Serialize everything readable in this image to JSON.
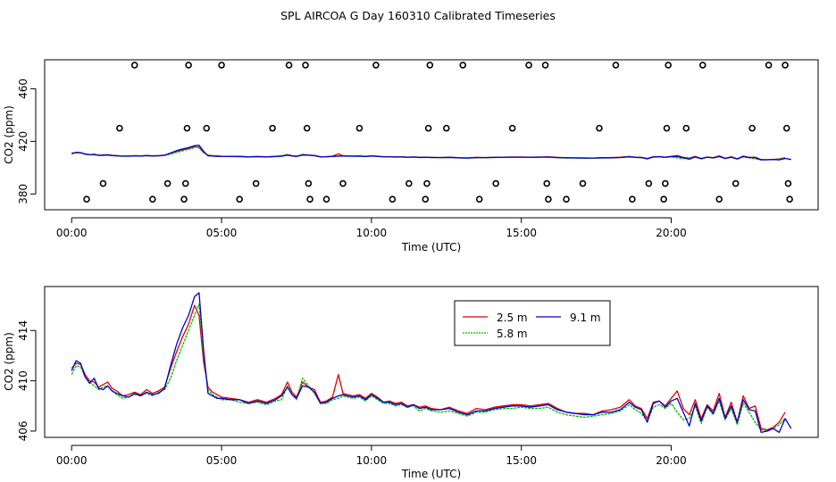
{
  "title": "SPL AIRCOA G  Day 160310  Calibrated Timeseries",
  "colors": {
    "s25": "#e00000",
    "s58": "#00c000",
    "s91": "#0000cc",
    "frame": "#000000"
  },
  "chart_data": [
    {
      "type": "scatter+line",
      "xlabel": "Time (UTC)",
      "ylabel": "CO2 (ppm)",
      "xlim": [
        -0.9,
        24.9
      ],
      "ylim": [
        368,
        482
      ],
      "xticks": [
        0,
        5,
        10,
        15,
        20
      ],
      "xtick_labels": [
        "00:00",
        "05:00",
        "10:00",
        "15:00",
        "20:00"
      ],
      "yticks": [
        380,
        420,
        460
      ],
      "ytick_labels": [
        "380",
        "420",
        "460"
      ],
      "cal_points": [
        {
          "x": 0.5,
          "y": 376
        },
        {
          "x": 1.05,
          "y": 388
        },
        {
          "x": 1.6,
          "y": 430
        },
        {
          "x": 2.1,
          "y": 478
        },
        {
          "x": 2.7,
          "y": 376
        },
        {
          "x": 3.2,
          "y": 388
        },
        {
          "x": 3.75,
          "y": 376
        },
        {
          "x": 3.8,
          "y": 388
        },
        {
          "x": 3.85,
          "y": 430
        },
        {
          "x": 3.9,
          "y": 478
        },
        {
          "x": 4.5,
          "y": 430
        },
        {
          "x": 5.0,
          "y": 478
        },
        {
          "x": 5.6,
          "y": 376
        },
        {
          "x": 6.15,
          "y": 388
        },
        {
          "x": 6.7,
          "y": 430
        },
        {
          "x": 7.25,
          "y": 478
        },
        {
          "x": 7.8,
          "y": 478
        },
        {
          "x": 7.85,
          "y": 430
        },
        {
          "x": 7.9,
          "y": 388
        },
        {
          "x": 7.95,
          "y": 376
        },
        {
          "x": 8.5,
          "y": 376
        },
        {
          "x": 9.05,
          "y": 388
        },
        {
          "x": 9.6,
          "y": 430
        },
        {
          "x": 10.15,
          "y": 478
        },
        {
          "x": 10.7,
          "y": 376
        },
        {
          "x": 11.25,
          "y": 388
        },
        {
          "x": 11.8,
          "y": 376
        },
        {
          "x": 11.85,
          "y": 388
        },
        {
          "x": 11.9,
          "y": 430
        },
        {
          "x": 11.95,
          "y": 478
        },
        {
          "x": 12.5,
          "y": 430
        },
        {
          "x": 13.05,
          "y": 478
        },
        {
          "x": 13.6,
          "y": 376
        },
        {
          "x": 14.15,
          "y": 388
        },
        {
          "x": 14.7,
          "y": 430
        },
        {
          "x": 15.25,
          "y": 478
        },
        {
          "x": 15.8,
          "y": 478
        },
        {
          "x": 15.85,
          "y": 388
        },
        {
          "x": 15.9,
          "y": 376
        },
        {
          "x": 16.5,
          "y": 376
        },
        {
          "x": 17.05,
          "y": 388
        },
        {
          "x": 17.6,
          "y": 430
        },
        {
          "x": 18.15,
          "y": 478
        },
        {
          "x": 18.7,
          "y": 376
        },
        {
          "x": 19.25,
          "y": 388
        },
        {
          "x": 19.75,
          "y": 376
        },
        {
          "x": 19.8,
          "y": 388
        },
        {
          "x": 19.85,
          "y": 430
        },
        {
          "x": 19.9,
          "y": 478
        },
        {
          "x": 20.5,
          "y": 430
        },
        {
          "x": 21.05,
          "y": 478
        },
        {
          "x": 21.6,
          "y": 376
        },
        {
          "x": 22.15,
          "y": 388
        },
        {
          "x": 22.7,
          "y": 430
        },
        {
          "x": 23.25,
          "y": 478
        },
        {
          "x": 23.8,
          "y": 478
        },
        {
          "x": 23.85,
          "y": 430
        },
        {
          "x": 23.9,
          "y": 388
        },
        {
          "x": 23.95,
          "y": 376
        }
      ]
    },
    {
      "type": "line",
      "xlabel": "Time (UTC)",
      "ylabel": "CO2 (ppm)",
      "xlim": [
        -0.9,
        24.9
      ],
      "ylim": [
        405.5,
        417.5
      ],
      "xticks": [
        0,
        5,
        10,
        15,
        20
      ],
      "xtick_labels": [
        "00:00",
        "05:00",
        "10:00",
        "15:00",
        "20:00"
      ],
      "yticks": [
        406,
        410,
        414
      ],
      "ytick_labels": [
        "406",
        "410",
        "414"
      ],
      "legend": {
        "position": "top-center",
        "entries": [
          "2.5 m",
          "5.8 m",
          "9.1 m"
        ]
      },
      "x": [
        0.0,
        0.15,
        0.3,
        0.45,
        0.6,
        0.75,
        0.9,
        1.05,
        1.2,
        1.35,
        1.5,
        1.7,
        1.9,
        2.1,
        2.3,
        2.5,
        2.7,
        2.9,
        3.1,
        3.3,
        3.5,
        3.7,
        3.9,
        4.1,
        4.25,
        4.4,
        4.55,
        4.7,
        4.85,
        5.0,
        5.3,
        5.6,
        5.9,
        6.2,
        6.5,
        6.8,
        7.0,
        7.2,
        7.35,
        7.5,
        7.7,
        7.9,
        8.1,
        8.3,
        8.5,
        8.7,
        8.9,
        9.05,
        9.2,
        9.4,
        9.6,
        9.8,
        10.0,
        10.2,
        10.4,
        10.6,
        10.8,
        11.0,
        11.2,
        11.4,
        11.6,
        11.8,
        12.0,
        12.3,
        12.6,
        12.9,
        13.2,
        13.5,
        13.8,
        14.1,
        14.4,
        14.7,
        15.0,
        15.3,
        15.6,
        15.9,
        16.2,
        16.5,
        16.8,
        17.1,
        17.4,
        17.7,
        18.0,
        18.3,
        18.6,
        18.8,
        19.0,
        19.2,
        19.4,
        19.6,
        19.8,
        20.0,
        20.2,
        20.4,
        20.6,
        20.8,
        21.0,
        21.2,
        21.4,
        21.6,
        21.8,
        22.0,
        22.2,
        22.4,
        22.6,
        22.8,
        23.0,
        23.2,
        23.4,
        23.6,
        23.8,
        24.0
      ],
      "series": [
        {
          "name": "2.5 m",
          "color_key": "s25",
          "values": [
            411.0,
            411.4,
            411.3,
            410.5,
            410.0,
            409.9,
            409.5,
            409.7,
            409.9,
            409.4,
            409.2,
            408.8,
            408.9,
            409.1,
            408.9,
            409.3,
            409.0,
            409.2,
            409.5,
            411.0,
            412.3,
            413.5,
            414.5,
            416.0,
            415.2,
            411.5,
            409.5,
            409.1,
            408.9,
            408.7,
            408.6,
            408.5,
            408.3,
            408.5,
            408.3,
            408.6,
            408.9,
            409.9,
            409.1,
            408.7,
            409.9,
            409.5,
            409.3,
            408.3,
            408.4,
            408.7,
            410.5,
            409.0,
            408.9,
            408.8,
            408.9,
            408.6,
            409.0,
            408.7,
            408.3,
            408.4,
            408.2,
            408.3,
            408.0,
            408.1,
            407.9,
            408.0,
            407.8,
            407.7,
            407.9,
            407.6,
            407.4,
            407.8,
            407.7,
            407.9,
            408.0,
            408.1,
            408.1,
            408.0,
            408.1,
            408.2,
            407.8,
            407.5,
            407.4,
            407.4,
            407.3,
            407.6,
            407.7,
            407.9,
            408.5,
            408.0,
            407.8,
            407.0,
            408.3,
            408.4,
            408.0,
            408.6,
            409.2,
            407.8,
            407.3,
            408.5,
            407.0,
            408.1,
            407.6,
            409.0,
            407.1,
            408.3,
            406.7,
            408.8,
            407.8,
            408.0,
            406.2,
            406.1,
            406.3,
            406.7,
            407.5,
            null
          ]
        },
        {
          "name": "5.8 m",
          "color_key": "s58",
          "values": [
            410.5,
            411.2,
            411.1,
            410.3,
            409.9,
            409.6,
            409.3,
            409.5,
            409.6,
            409.2,
            408.9,
            408.6,
            408.7,
            408.9,
            408.8,
            409.0,
            408.8,
            409.1,
            409.3,
            410.2,
            411.6,
            412.8,
            414.0,
            415.2,
            416.1,
            412.0,
            409.3,
            408.9,
            408.7,
            408.5,
            408.5,
            408.3,
            408.2,
            408.3,
            408.1,
            408.4,
            408.5,
            409.6,
            408.9,
            408.5,
            410.2,
            409.6,
            409.0,
            408.2,
            408.2,
            408.5,
            408.6,
            408.8,
            408.7,
            408.6,
            408.7,
            408.4,
            408.8,
            408.5,
            408.2,
            408.2,
            408.0,
            408.1,
            407.9,
            408.0,
            407.6,
            407.8,
            407.6,
            407.5,
            407.6,
            407.4,
            407.2,
            407.5,
            407.5,
            407.7,
            407.8,
            407.8,
            407.9,
            407.8,
            407.8,
            407.9,
            407.5,
            407.3,
            407.2,
            407.1,
            407.2,
            407.3,
            407.4,
            407.6,
            408.1,
            407.7,
            407.4,
            406.8,
            407.9,
            408.1,
            407.8,
            408.2,
            407.5,
            406.9,
            407.0,
            408.0,
            406.6,
            407.9,
            407.3,
            408.4,
            406.9,
            407.8,
            406.5,
            408.2,
            407.5,
            406.7,
            406.1,
            406.0,
            406.2,
            406.5,
            407.0,
            null
          ]
        },
        {
          "name": "9.1 m",
          "color_key": "s91",
          "values": [
            410.8,
            411.6,
            411.4,
            410.3,
            409.8,
            410.2,
            409.4,
            409.3,
            409.6,
            409.2,
            409.0,
            408.8,
            408.7,
            409.0,
            408.8,
            409.1,
            408.9,
            409.0,
            409.4,
            411.2,
            412.9,
            414.2,
            415.2,
            416.7,
            417.0,
            412.5,
            409.0,
            408.8,
            408.6,
            408.6,
            408.5,
            408.5,
            408.2,
            408.4,
            408.2,
            408.5,
            408.8,
            409.5,
            408.9,
            408.6,
            409.6,
            409.5,
            409.1,
            408.2,
            408.3,
            408.6,
            408.8,
            408.9,
            408.8,
            408.7,
            408.8,
            408.5,
            408.9,
            408.6,
            408.3,
            408.3,
            408.1,
            408.2,
            407.9,
            408.1,
            407.8,
            407.9,
            407.7,
            407.7,
            407.8,
            407.5,
            407.3,
            407.6,
            407.6,
            407.8,
            407.9,
            408.0,
            408.0,
            407.9,
            408.0,
            408.1,
            407.7,
            407.5,
            407.4,
            407.3,
            407.3,
            407.5,
            407.5,
            407.7,
            408.3,
            407.9,
            407.7,
            406.7,
            408.2,
            408.4,
            407.9,
            408.4,
            408.6,
            407.5,
            406.4,
            408.2,
            406.8,
            408.0,
            407.4,
            408.6,
            407.0,
            408.0,
            406.7,
            408.5,
            407.7,
            407.6,
            405.9,
            406.0,
            406.2,
            405.9,
            407.0,
            406.2
          ]
        }
      ]
    }
  ]
}
